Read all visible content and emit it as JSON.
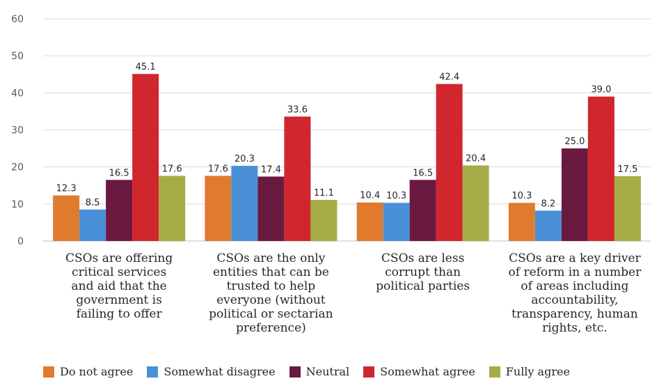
{
  "chart_data": {
    "type": "bar",
    "ylim": [
      0,
      60
    ],
    "yticks": [
      0,
      10,
      20,
      30,
      40,
      50,
      60
    ],
    "grid": true,
    "legend_position": "bottom",
    "categories": [
      [
        "CSOs are offering",
        "critical services",
        "and aid that the",
        "government is",
        "failing to offer"
      ],
      [
        "CSOs are the only",
        "entities that can be",
        "trusted to help",
        "everyone (without",
        "political or sectarian",
        "preference)"
      ],
      [
        "CSOs are less",
        "corrupt than",
        "political parties"
      ],
      [
        "CSOs are a key driver",
        "of reform in a number",
        "of areas including",
        "accountability,",
        "transparency, human",
        "rights, etc."
      ]
    ],
    "series": [
      {
        "name": "Do not agree",
        "color": "#E07B2E",
        "values": [
          12.3,
          17.6,
          10.4,
          10.3
        ],
        "labels": [
          "12.3",
          "17.6",
          "10.4",
          "10.3"
        ]
      },
      {
        "name": "Somewhat disagree",
        "color": "#4A90D9",
        "values": [
          8.5,
          20.3,
          10.3,
          8.2
        ],
        "labels": [
          "8.5",
          "20.3",
          "10.3",
          "8.2"
        ]
      },
      {
        "name": "Neutral",
        "color": "#6B1A3F",
        "values": [
          16.5,
          17.4,
          16.5,
          25.0
        ],
        "labels": [
          "16.5",
          "17.4",
          "16.5",
          "25.0"
        ]
      },
      {
        "name": "Somewhat agree",
        "color": "#D0262D",
        "values": [
          45.1,
          33.6,
          42.4,
          39.0
        ],
        "labels": [
          "45.1",
          "33.6",
          "42.4",
          "39.0"
        ]
      },
      {
        "name": "Fully agree",
        "color": "#A6AC45",
        "values": [
          17.6,
          11.1,
          20.4,
          17.5
        ],
        "labels": [
          "17.6",
          "11.1",
          "20.4",
          "17.5"
        ]
      }
    ]
  }
}
